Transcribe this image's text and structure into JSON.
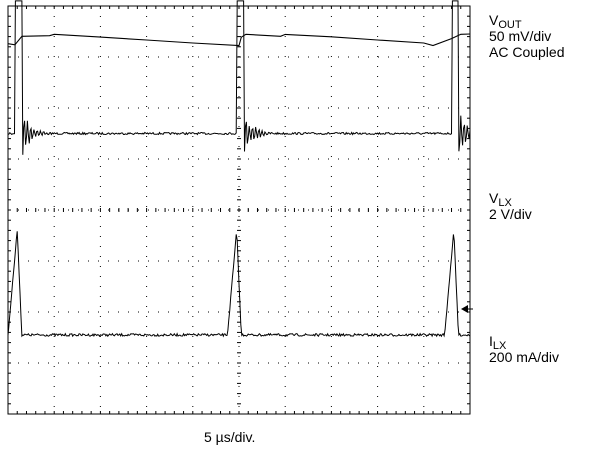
{
  "chart_data": {
    "type": "line",
    "title": "",
    "xlabel": "5 µs/div.",
    "x_divisions": 10,
    "y_divisions": 8,
    "grid": true,
    "channels": [
      {
        "name_main": "V",
        "name_sub": "OUT",
        "scale": "50 mV/div",
        "coupling": "AC Coupled",
        "baseline_div": 0.55,
        "points": [
          [
            0,
            0.2
          ],
          [
            0.15,
            0.2
          ],
          [
            0.3,
            0.05
          ],
          [
            0.9,
            0.04
          ],
          [
            1.0,
            0.0
          ],
          [
            2.0,
            0.06
          ],
          [
            3.0,
            0.12
          ],
          [
            4.0,
            0.17
          ],
          [
            5.0,
            0.22
          ],
          [
            5.05,
            0.06
          ],
          [
            5.15,
            0.0
          ],
          [
            5.9,
            0.04
          ],
          [
            6.0,
            0.0
          ],
          [
            7.0,
            0.06
          ],
          [
            8.0,
            0.12
          ],
          [
            9.0,
            0.17
          ],
          [
            9.2,
            0.22
          ],
          [
            9.6,
            0.1
          ],
          [
            9.8,
            0.0
          ],
          [
            10,
            0.0
          ]
        ]
      },
      {
        "name_main": "V",
        "name_sub": "LX",
        "scale": "2 V/div",
        "coupling": "",
        "baseline_div": 2.5,
        "pulses_div": [
          0.15,
          4.95,
          9.6
        ],
        "pulse_width_div": 0.15,
        "pulse_height_div": 2.6,
        "ring_duration_div": 0.6,
        "ring_amplitude_div": 0.45
      },
      {
        "name_main": "I",
        "name_sub": "LX",
        "scale": "200 mA/div",
        "coupling": "",
        "baseline_div": 6.45,
        "peaks_div": [
          0.2,
          4.95,
          9.65
        ],
        "rise_div": 0.2,
        "fall_div": 0.1,
        "peak_height_div": 2.05
      }
    ]
  }
}
